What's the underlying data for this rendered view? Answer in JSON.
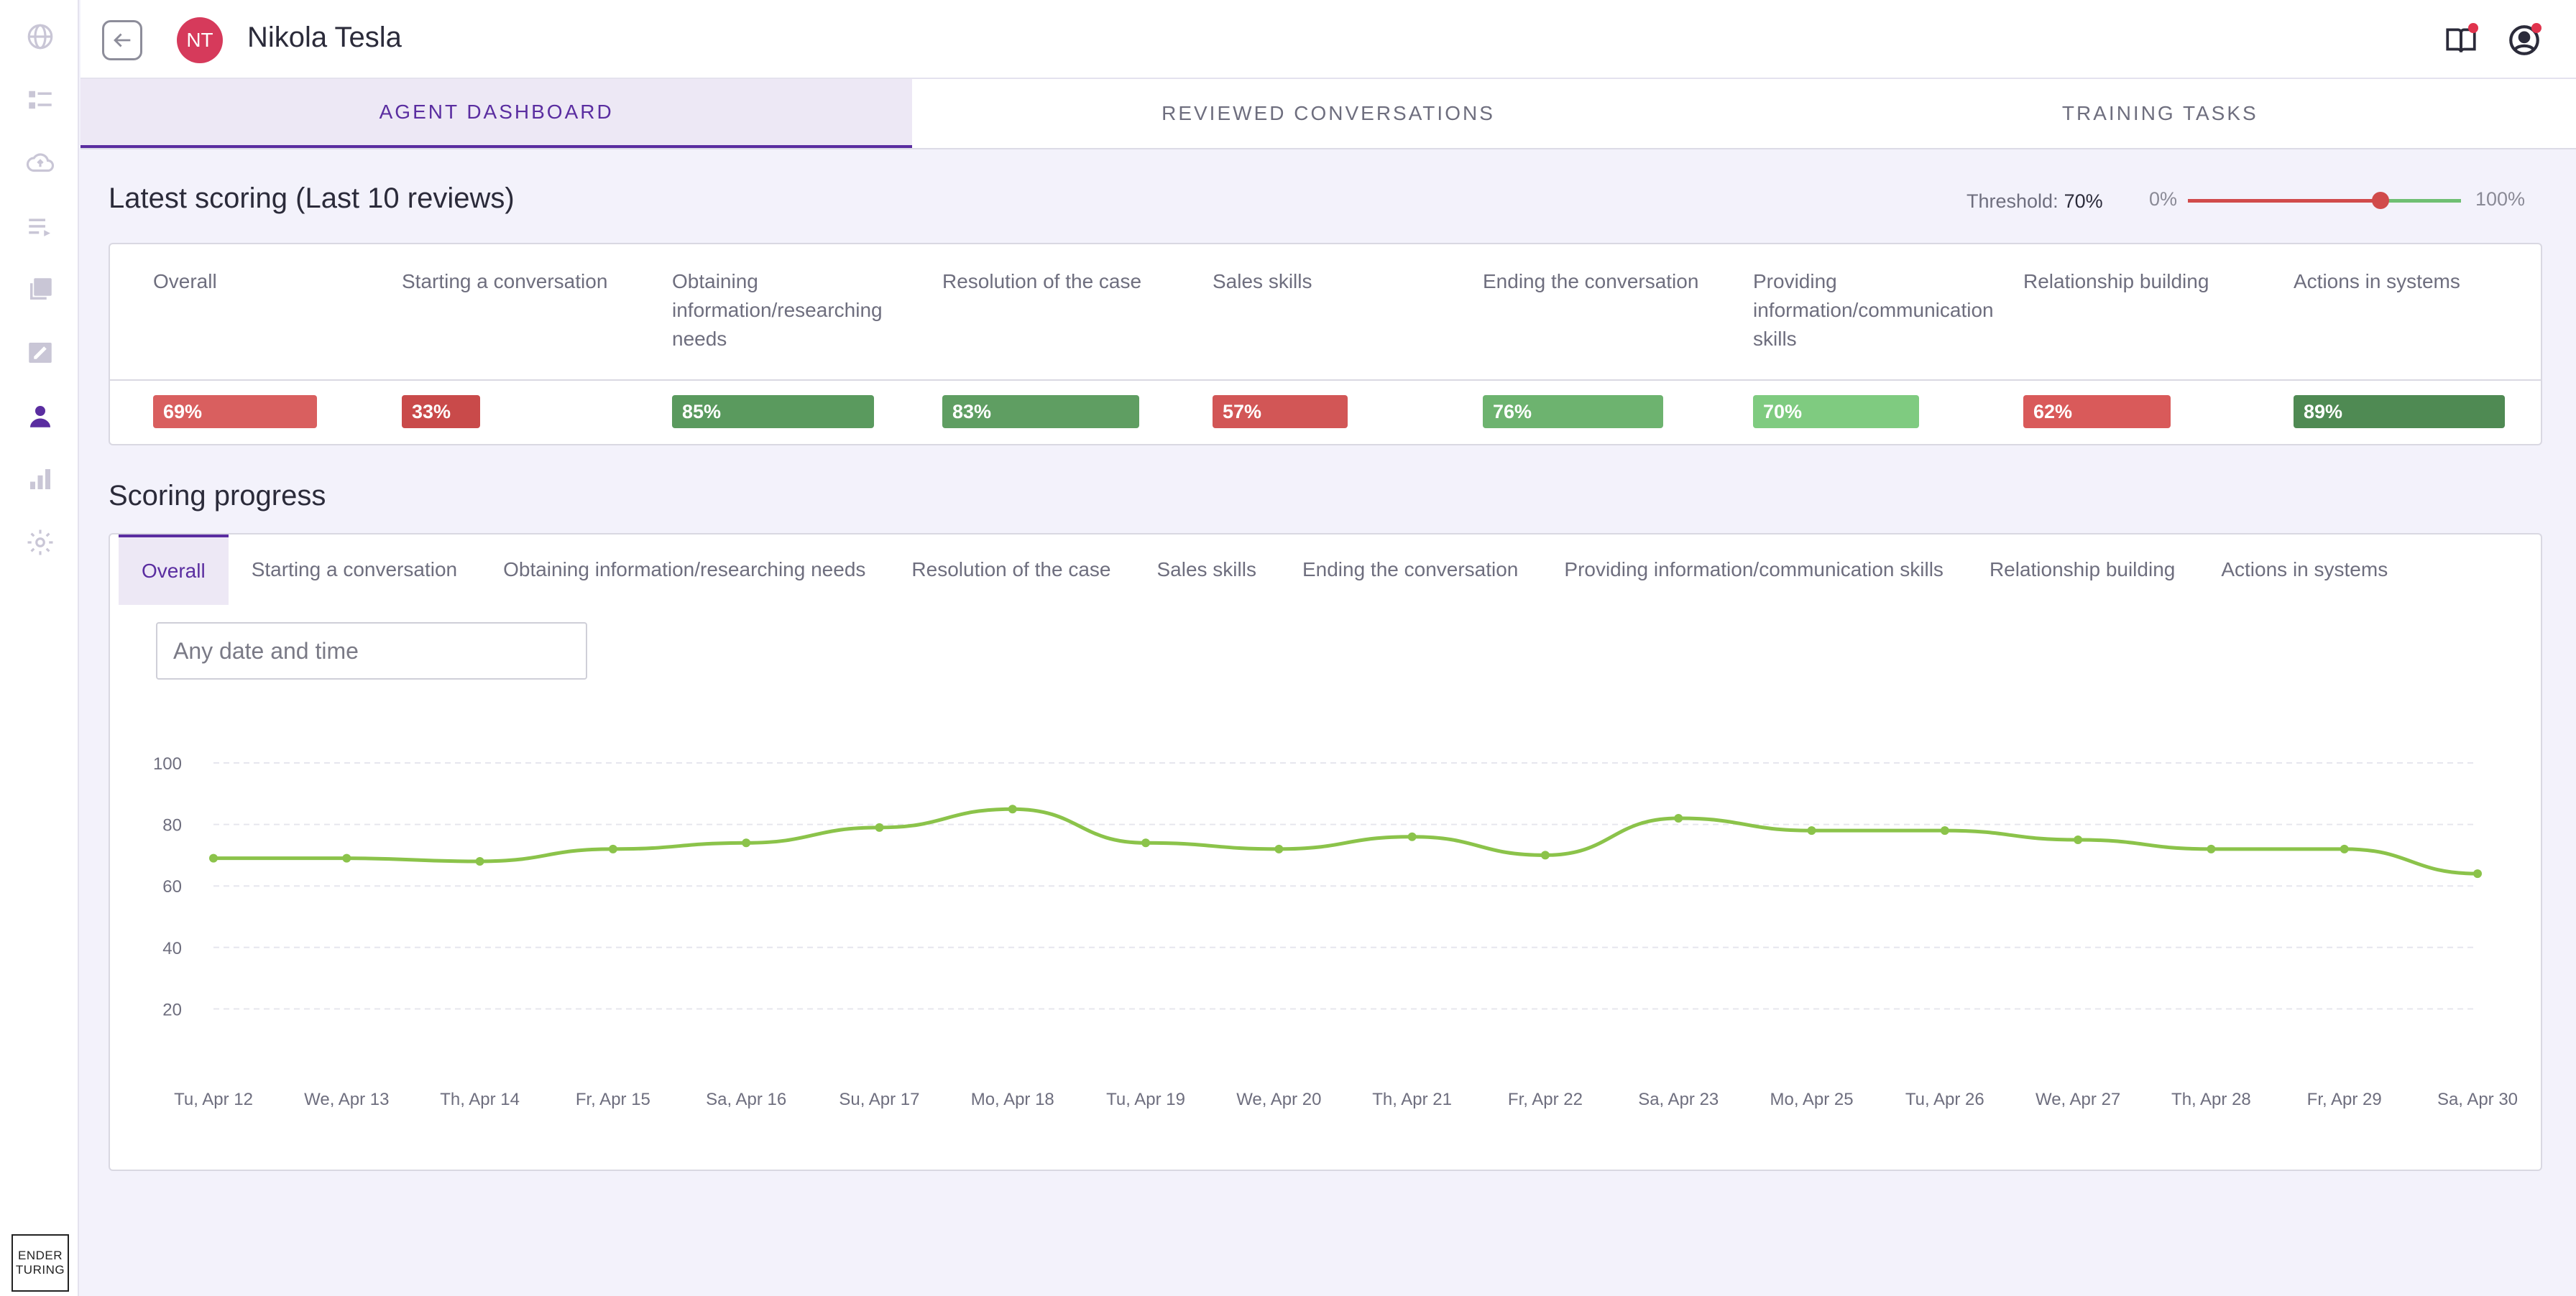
{
  "sidebar": {
    "items": [
      {
        "icon": "globe-icon"
      },
      {
        "icon": "list-icon"
      },
      {
        "icon": "cloud-upload-icon"
      },
      {
        "icon": "playlist-icon"
      },
      {
        "icon": "library-icon"
      },
      {
        "icon": "edit-note-icon"
      },
      {
        "icon": "agent-icon",
        "active": true
      },
      {
        "icon": "bar-chart-icon"
      },
      {
        "icon": "settings-icon"
      }
    ],
    "logo": {
      "line1": "ENDER",
      "line2": "TURING"
    }
  },
  "header": {
    "avatar_initials": "NT",
    "agent_name": "Nikola Tesla",
    "icons": [
      "guide-icon",
      "account-icon"
    ]
  },
  "tabs": [
    {
      "label": "AGENT DASHBOARD",
      "active": true
    },
    {
      "label": "REVIEWED CONVERSATIONS",
      "active": false
    },
    {
      "label": "TRAINING TASKS",
      "active": false
    }
  ],
  "latest": {
    "title": "Latest scoring (Last 10 reviews)",
    "threshold_label": "Threshold:",
    "threshold_value": "70%",
    "threshold_fraction": 0.7,
    "min_label": "0%",
    "max_label": "100%",
    "categories": [
      {
        "name": "Overall",
        "score": "69%",
        "value": 69,
        "color": "#d95f5f"
      },
      {
        "name": "Starting a conversation",
        "score": "33%",
        "value": 33,
        "color": "#c94a4a"
      },
      {
        "name": "Obtaining information/researching needs",
        "score": "85%",
        "value": 85,
        "color": "#5a9a5e"
      },
      {
        "name": "Resolution of the case",
        "score": "83%",
        "value": 83,
        "color": "#5f9e62"
      },
      {
        "name": "Sales skills",
        "score": "57%",
        "value": 57,
        "color": "#d25656"
      },
      {
        "name": "Ending the conversation",
        "score": "76%",
        "value": 76,
        "color": "#6db36f"
      },
      {
        "name": "Providing information/communication skills",
        "score": "70%",
        "value": 70,
        "color": "#7fcb80"
      },
      {
        "name": "Relationship building",
        "score": "62%",
        "value": 62,
        "color": "#d95a5a"
      },
      {
        "name": "Actions in systems",
        "score": "89%",
        "value": 89,
        "color": "#4f8a53"
      }
    ]
  },
  "progress": {
    "title": "Scoring progress",
    "tabs": [
      {
        "label": "Overall",
        "active": true
      },
      {
        "label": "Starting a conversation"
      },
      {
        "label": "Obtaining information/researching needs"
      },
      {
        "label": "Resolution of the case"
      },
      {
        "label": "Sales skills"
      },
      {
        "label": "Ending the conversation"
      },
      {
        "label": "Providing information/communication skills"
      },
      {
        "label": "Relationship building"
      },
      {
        "label": "Actions in systems"
      }
    ],
    "date_placeholder": "Any date and time"
  },
  "chart_data": {
    "type": "line",
    "title": "",
    "xlabel": "",
    "ylabel": "",
    "x": [
      "Tu, Apr 12",
      "We, Apr 13",
      "Th, Apr 14",
      "Fr, Apr 15",
      "Sa, Apr 16",
      "Su, Apr 17",
      "Mo, Apr 18",
      "Tu, Apr 19",
      "We, Apr 20",
      "Th, Apr 21",
      "Fr, Apr 22",
      "Sa, Apr 23",
      "Mo, Apr 25",
      "Tu, Apr 26",
      "We, Apr 27",
      "Th, Apr 28",
      "Fr, Apr 29",
      "Sa, Apr 30"
    ],
    "series": [
      {
        "values": [
          69,
          69,
          68,
          72,
          74,
          79,
          85,
          74,
          72,
          76,
          70,
          82,
          78,
          78,
          75,
          72,
          72,
          64
        ],
        "color": "#8bc34a"
      }
    ],
    "yticks": [
      20,
      40,
      60,
      80,
      100
    ],
    "ylim": [
      0,
      100
    ],
    "grid": true,
    "legend": "none"
  }
}
